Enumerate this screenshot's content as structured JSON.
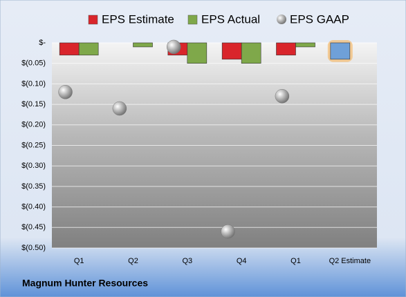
{
  "chart_data": {
    "type": "bar",
    "categories": [
      "Q1",
      "Q2",
      "Q3",
      "Q4",
      "Q1",
      "Q2 Estimate"
    ],
    "series": [
      {
        "name": "EPS Estimate",
        "color": "#d9252b",
        "values": [
          -0.03,
          0,
          -0.03,
          -0.04,
          -0.03,
          -0.04
        ],
        "highlight": {
          "index": 5,
          "color": "#6fa0d8",
          "glow": "#f5b35a"
        }
      },
      {
        "name": "EPS Actual",
        "color": "#7fa84a",
        "values": [
          -0.03,
          -0.01,
          -0.05,
          -0.05,
          -0.01,
          null
        ]
      },
      {
        "name": "EPS GAAP",
        "type": "scatter",
        "color": "#a8a8a8",
        "values": [
          -0.12,
          -0.16,
          -0.01,
          -0.46,
          -0.13,
          null
        ]
      }
    ],
    "ylim": [
      -0.5,
      0
    ],
    "yticks": [
      {
        "value": 0,
        "label": "$-"
      },
      {
        "value": -0.05,
        "label": "$(0.05)"
      },
      {
        "value": -0.1,
        "label": "$(0.10)"
      },
      {
        "value": -0.15,
        "label": "$(0.15)"
      },
      {
        "value": -0.2,
        "label": "$(0.20)"
      },
      {
        "value": -0.25,
        "label": "$(0.25)"
      },
      {
        "value": -0.3,
        "label": "$(0.30)"
      },
      {
        "value": -0.35,
        "label": "$(0.35)"
      },
      {
        "value": -0.4,
        "label": "$(0.40)"
      },
      {
        "value": -0.45,
        "label": "$(0.45)"
      },
      {
        "value": -0.5,
        "label": "$(0.50)"
      }
    ],
    "grid": true,
    "legend": "top",
    "footer": "Magnum Hunter Resources"
  }
}
